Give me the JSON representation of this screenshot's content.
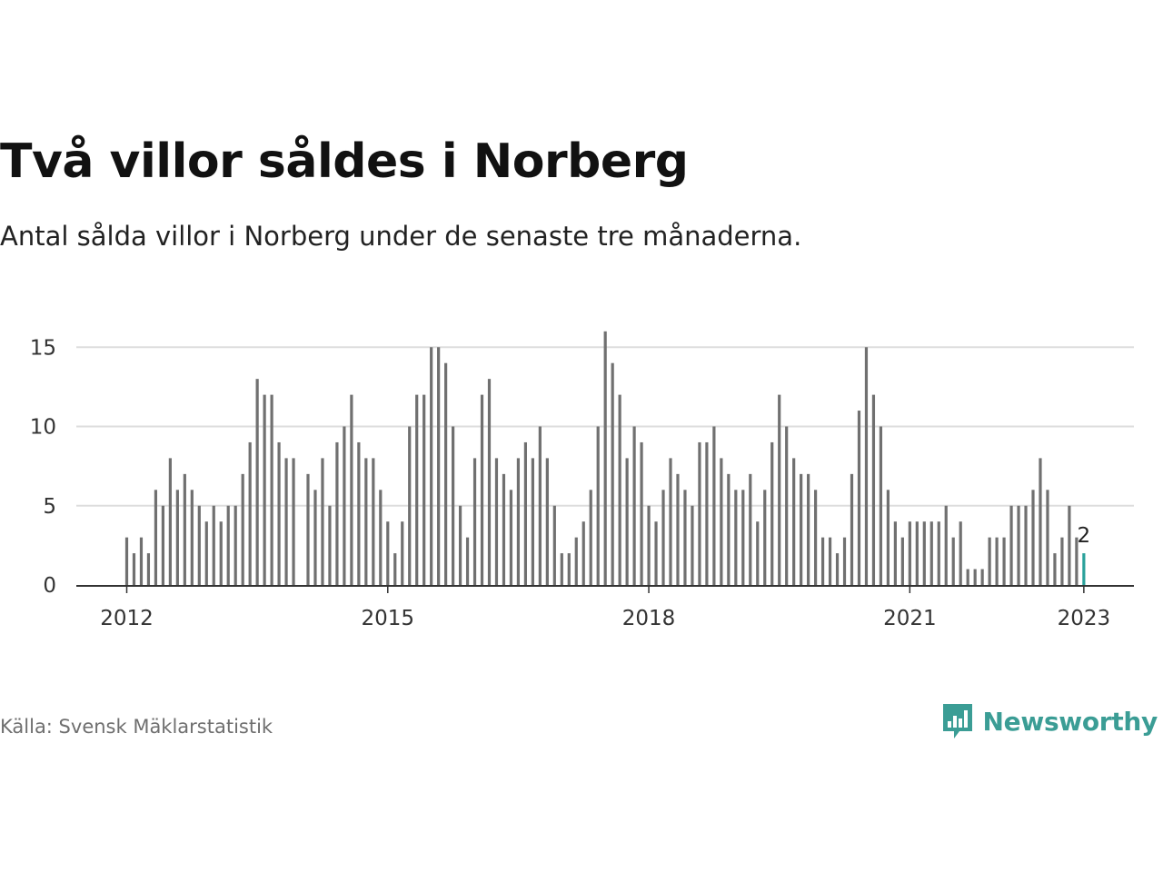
{
  "header": {
    "title": "Två villor såldes i Norberg",
    "subtitle": "Antal sålda villor i Norberg under de senaste tre månaderna."
  },
  "footer": {
    "source": "Källa: Svensk Mäklarstatistik",
    "brand": "Newsworthy"
  },
  "colors": {
    "bar": "#707070",
    "highlight": "#2aa19b",
    "grid": "#dddddd",
    "axis": "#333333",
    "brand": "#3b9d95"
  },
  "icons": {
    "logo": "newsworthy-chart-bubble-icon"
  },
  "chart_data": {
    "type": "bar",
    "x_start": "2012-01",
    "interval": "month",
    "values": [
      3,
      2,
      3,
      2,
      6,
      5,
      8,
      6,
      7,
      6,
      5,
      4,
      5,
      4,
      5,
      5,
      7,
      9,
      13,
      12,
      12,
      9,
      8,
      8,
      null,
      7,
      6,
      8,
      5,
      9,
      10,
      12,
      9,
      8,
      8,
      6,
      4,
      2,
      4,
      10,
      12,
      12,
      15,
      15,
      14,
      10,
      5,
      3,
      8,
      12,
      13,
      8,
      7,
      6,
      8,
      9,
      8,
      10,
      8,
      5,
      2,
      2,
      3,
      4,
      6,
      10,
      16,
      14,
      12,
      8,
      10,
      9,
      5,
      4,
      6,
      8,
      7,
      6,
      5,
      9,
      9,
      10,
      8,
      7,
      6,
      6,
      7,
      4,
      6,
      9,
      12,
      10,
      8,
      7,
      7,
      6,
      3,
      3,
      2,
      3,
      7,
      11,
      15,
      12,
      10,
      6,
      4,
      3,
      4,
      4,
      4,
      4,
      4,
      5,
      3,
      4,
      1,
      1,
      1,
      3,
      3,
      3,
      5,
      5,
      5,
      6,
      8,
      6,
      2,
      3,
      5,
      3,
      2
    ],
    "x_ticks": [
      "2012",
      "2015",
      "2018",
      "2021",
      "2023"
    ],
    "y_ticks": [
      0,
      5,
      10,
      15
    ],
    "ylim": [
      0,
      16
    ],
    "highlight_label": "2",
    "grid": "horizontal",
    "legend": "none"
  }
}
